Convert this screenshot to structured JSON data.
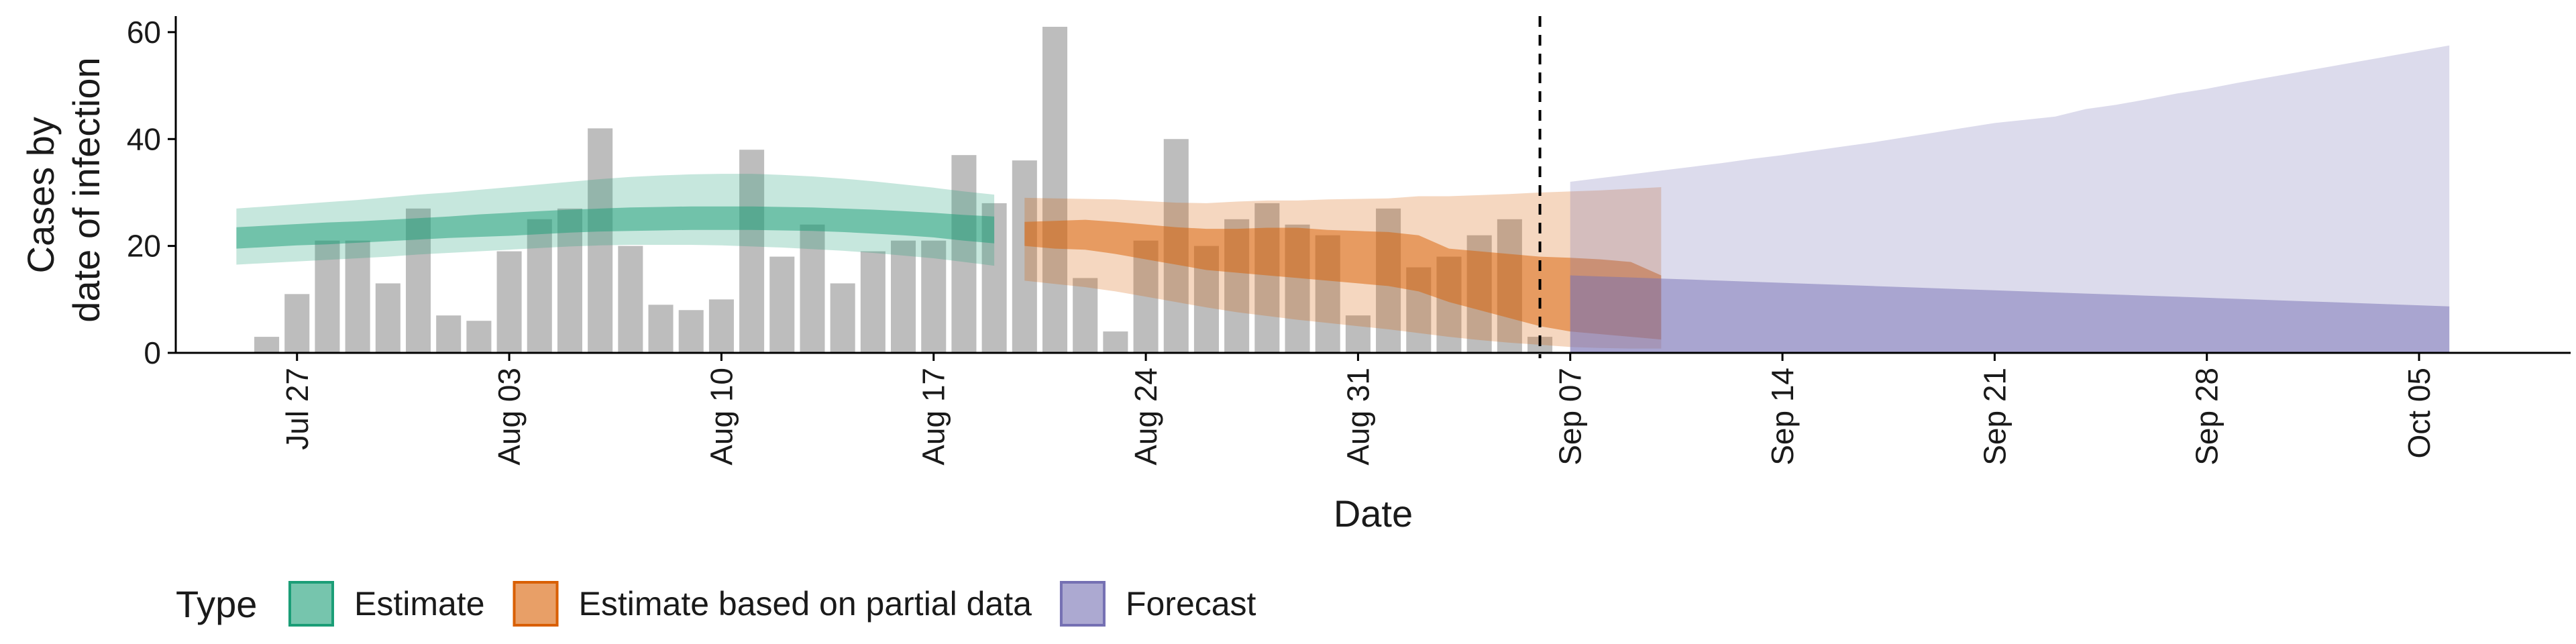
{
  "chart_data": {
    "type": "bar+area",
    "xlabel": "Date",
    "ylabel_lines": [
      "Cases by",
      "date of infection"
    ],
    "ylim": [
      0,
      63
    ],
    "y_ticks": [
      0,
      20,
      40,
      60
    ],
    "x_range": [
      "2020-07-23",
      "2020-10-10"
    ],
    "x_ticks": [
      {
        "date": "2020-07-27",
        "label": "Jul 27"
      },
      {
        "date": "2020-08-03",
        "label": "Aug 03"
      },
      {
        "date": "2020-08-10",
        "label": "Aug 10"
      },
      {
        "date": "2020-08-17",
        "label": "Aug 17"
      },
      {
        "date": "2020-08-24",
        "label": "Aug 24"
      },
      {
        "date": "2020-08-31",
        "label": "Aug 31"
      },
      {
        "date": "2020-09-07",
        "label": "Sep 07"
      },
      {
        "date": "2020-09-14",
        "label": "Sep 14"
      },
      {
        "date": "2020-09-21",
        "label": "Sep 21"
      },
      {
        "date": "2020-09-28",
        "label": "Sep 28"
      },
      {
        "date": "2020-10-05",
        "label": "Oct 05"
      }
    ],
    "vline_date": "2020-09-06",
    "observed_cases": {
      "start_date": "2020-07-26",
      "values": [
        3,
        11,
        21,
        21,
        13,
        27,
        7,
        6,
        19,
        25,
        27,
        42,
        20,
        9,
        8,
        10,
        38,
        18,
        24,
        13,
        19,
        21,
        21,
        37,
        28,
        36,
        61,
        14,
        4,
        21,
        40,
        20,
        25,
        28,
        24,
        22,
        7,
        27,
        16,
        18,
        22,
        25,
        3
      ],
      "color": "#bdbdbd"
    },
    "series": [
      {
        "name": "Estimate",
        "color": "#1b9e77",
        "start_date": "2020-07-25",
        "inner_lower": [
          19.5,
          19.8,
          20.1,
          20.3,
          20.6,
          20.9,
          21.2,
          21.5,
          21.7,
          21.9,
          22.2,
          22.5,
          22.7,
          22.8,
          22.9,
          23.0,
          23.0,
          23.0,
          22.9,
          22.8,
          22.6,
          22.3,
          22.0,
          21.6,
          21.0,
          20.5
        ],
        "inner_upper": [
          23.5,
          23.8,
          24.1,
          24.4,
          24.6,
          24.9,
          25.2,
          25.5,
          25.9,
          26.2,
          26.5,
          26.8,
          27.0,
          27.2,
          27.3,
          27.4,
          27.4,
          27.4,
          27.3,
          27.2,
          27.0,
          26.8,
          26.5,
          26.2,
          25.8,
          25.5
        ],
        "outer_lower": [
          16.5,
          16.8,
          17.1,
          17.4,
          17.7,
          18.0,
          18.4,
          18.7,
          19.0,
          19.3,
          19.6,
          19.9,
          20.1,
          20.2,
          20.2,
          20.2,
          20.1,
          19.9,
          19.7,
          19.4,
          19.1,
          18.7,
          18.2,
          17.7,
          17.0,
          16.3
        ],
        "outer_upper": [
          27.0,
          27.4,
          27.8,
          28.2,
          28.6,
          29.1,
          29.6,
          30.0,
          30.5,
          31.0,
          31.5,
          32.0,
          32.5,
          32.9,
          33.2,
          33.4,
          33.5,
          33.5,
          33.3,
          33.0,
          32.6,
          32.1,
          31.5,
          30.9,
          30.2,
          29.6
        ]
      },
      {
        "name": "Estimate based on partial data",
        "color": "#d95f02",
        "start_date": "2020-08-20",
        "inner_lower": [
          20.0,
          19.5,
          19.3,
          18.5,
          17.5,
          16.5,
          15.5,
          15.0,
          14.5,
          14.0,
          13.5,
          13.0,
          12.5,
          11.5,
          9.5,
          8.0,
          6.5,
          5.0,
          4.0,
          3.5,
          3.0,
          2.5
        ],
        "inner_upper": [
          24.5,
          24.7,
          24.9,
          24.5,
          24.0,
          23.5,
          23.2,
          23.2,
          23.4,
          23.4,
          23.0,
          22.8,
          22.6,
          22.0,
          19.5,
          19.0,
          18.5,
          18.0,
          17.8,
          17.5,
          17.0,
          14.5
        ],
        "outer_lower": [
          13.5,
          12.9,
          12.3,
          11.5,
          10.5,
          9.5,
          8.5,
          7.6,
          6.9,
          6.2,
          5.6,
          5.0,
          4.4,
          3.7,
          3.0,
          2.4,
          1.9,
          1.5,
          1.1,
          0.9,
          0.8,
          0.8
        ],
        "outer_upper": [
          29.0,
          28.9,
          28.8,
          28.7,
          28.4,
          28.1,
          28.0,
          28.3,
          28.5,
          28.5,
          28.7,
          28.8,
          28.9,
          29.3,
          29.3,
          29.5,
          29.7,
          30.0,
          30.2,
          30.4,
          30.7,
          31.0
        ]
      },
      {
        "name": "Forecast",
        "color": "#7570b3",
        "start_date": "2020-09-07",
        "inner_lower": [
          0,
          0,
          0,
          0,
          0,
          0,
          0,
          0,
          0,
          0,
          0,
          0,
          0,
          0,
          0,
          0,
          0,
          0,
          0,
          0,
          0,
          0,
          0,
          0,
          0,
          0,
          0,
          0,
          0,
          0
        ],
        "inner_upper": [
          14.5,
          14.3,
          14.1,
          13.9,
          13.7,
          13.5,
          13.3,
          13.1,
          12.9,
          12.7,
          12.5,
          12.3,
          12.1,
          11.9,
          11.7,
          11.5,
          11.3,
          11.1,
          10.9,
          10.7,
          10.5,
          10.3,
          10.1,
          9.9,
          9.7,
          9.5,
          9.3,
          9.1,
          8.9,
          8.7
        ],
        "outer_lower": [
          0,
          0,
          0,
          0,
          0,
          0,
          0,
          0,
          0,
          0,
          0,
          0,
          0,
          0,
          0,
          0,
          0,
          0,
          0,
          0,
          0,
          0,
          0,
          0,
          0,
          0,
          0,
          0,
          0,
          0
        ],
        "outer_upper": [
          32.0,
          32.7,
          33.4,
          34.1,
          34.8,
          35.5,
          36.3,
          37.0,
          37.8,
          38.6,
          39.4,
          40.3,
          41.2,
          42.1,
          43.0,
          43.6,
          44.2,
          45.6,
          46.4,
          47.4,
          48.5,
          49.4,
          50.5,
          51.5,
          52.5,
          53.5,
          54.5,
          55.5,
          56.5,
          57.5
        ]
      }
    ],
    "legend": {
      "position": "bottom-left",
      "title": "Type",
      "entries": [
        "Estimate",
        "Estimate based on partial data",
        "Forecast"
      ]
    },
    "grid": false
  }
}
